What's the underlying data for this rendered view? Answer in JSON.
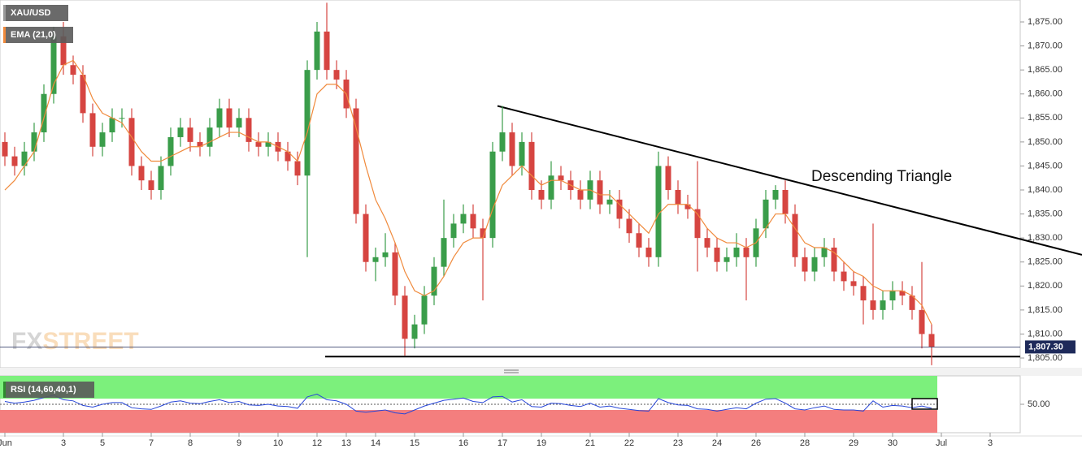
{
  "chart_data": {
    "type": "candlestick",
    "title": "XAU/USD",
    "categories": [
      "Jun",
      null,
      null,
      null,
      null,
      null,
      "3",
      null,
      null,
      null,
      "5",
      null,
      null,
      null,
      null,
      "7",
      null,
      null,
      null,
      "8",
      null,
      null,
      null,
      null,
      "9",
      null,
      null,
      null,
      "10",
      null,
      null,
      null,
      "12",
      null,
      null,
      "13",
      null,
      null,
      "14",
      null,
      null,
      null,
      "15",
      null,
      null,
      null,
      null,
      "16",
      null,
      null,
      null,
      "17",
      null,
      null,
      null,
      "19",
      null,
      null,
      null,
      null,
      "21",
      null,
      null,
      null,
      "22",
      null,
      null,
      null,
      null,
      "23",
      null,
      null,
      null,
      "24",
      null,
      null,
      null,
      "26",
      null,
      null,
      null,
      null,
      "28",
      null,
      null,
      null,
      null,
      "29",
      null,
      null,
      null,
      "30",
      null,
      null,
      null,
      null,
      "Jul",
      null,
      null,
      null,
      null,
      "3"
    ],
    "candles": [
      [
        1850,
        1852,
        1845,
        1847
      ],
      [
        1847,
        1849,
        1843,
        1845
      ],
      [
        1845,
        1850,
        1843,
        1848
      ],
      [
        1848,
        1854,
        1846,
        1852
      ],
      [
        1852,
        1862,
        1850,
        1860
      ],
      [
        1860,
        1874,
        1858,
        1872
      ],
      [
        1872,
        1875,
        1864,
        1866
      ],
      [
        1866,
        1868,
        1862,
        1864
      ],
      [
        1864,
        1866,
        1854,
        1856
      ],
      [
        1856,
        1858,
        1847,
        1849
      ],
      [
        1849,
        1854,
        1847,
        1852
      ],
      [
        1852,
        1857,
        1850,
        1855
      ],
      [
        1855,
        1857,
        1853,
        1855
      ],
      [
        1855,
        1857,
        1843,
        1845
      ],
      [
        1845,
        1847,
        1840,
        1842
      ],
      [
        1842,
        1844,
        1838,
        1840
      ],
      [
        1840,
        1847,
        1838,
        1845
      ],
      [
        1845,
        1853,
        1843,
        1851
      ],
      [
        1851,
        1855,
        1849,
        1853
      ],
      [
        1853,
        1855,
        1848,
        1850
      ],
      [
        1850,
        1852,
        1847,
        1849
      ],
      [
        1849,
        1855,
        1847,
        1853
      ],
      [
        1853,
        1859,
        1851,
        1857
      ],
      [
        1857,
        1859,
        1851,
        1853
      ],
      [
        1853,
        1857,
        1851,
        1855
      ],
      [
        1855,
        1857,
        1848,
        1850
      ],
      [
        1850,
        1852,
        1847,
        1849
      ],
      [
        1849,
        1852,
        1847,
        1850
      ],
      [
        1850,
        1852,
        1846,
        1848
      ],
      [
        1848,
        1850,
        1844,
        1846
      ],
      [
        1846,
        1848,
        1841,
        1843
      ],
      [
        1843,
        1867,
        1826,
        1865
      ],
      [
        1865,
        1875,
        1863,
        1873
      ],
      [
        1873,
        1879,
        1863,
        1865
      ],
      [
        1865,
        1867,
        1861,
        1863
      ],
      [
        1863,
        1865,
        1855,
        1857
      ],
      [
        1857,
        1859,
        1833,
        1835
      ],
      [
        1835,
        1837,
        1823,
        1825
      ],
      [
        1825,
        1828,
        1821,
        1826
      ],
      [
        1826,
        1831,
        1824,
        1827
      ],
      [
        1827,
        1829,
        1816,
        1818
      ],
      [
        1818,
        1820,
        1805.5,
        1809
      ],
      [
        1809,
        1814,
        1807,
        1812
      ],
      [
        1812,
        1820,
        1810,
        1818
      ],
      [
        1818,
        1826,
        1816,
        1824
      ],
      [
        1824,
        1838,
        1822,
        1830
      ],
      [
        1830,
        1835,
        1828,
        1833
      ],
      [
        1833,
        1837,
        1831,
        1835
      ],
      [
        1835,
        1837,
        1830,
        1832
      ],
      [
        1832,
        1834,
        1817,
        1830
      ],
      [
        1830,
        1850,
        1828,
        1848
      ],
      [
        1848,
        1857.5,
        1846,
        1852
      ],
      [
        1852,
        1854,
        1843,
        1845
      ],
      [
        1845,
        1852,
        1843,
        1850
      ],
      [
        1850,
        1852,
        1838,
        1840
      ],
      [
        1840,
        1842,
        1836,
        1838
      ],
      [
        1838,
        1846,
        1836,
        1843
      ],
      [
        1843,
        1845,
        1840,
        1842
      ],
      [
        1842,
        1844,
        1838,
        1840
      ],
      [
        1840,
        1842,
        1836,
        1838
      ],
      [
        1838,
        1844,
        1836,
        1842
      ],
      [
        1842,
        1844,
        1835,
        1837
      ],
      [
        1837,
        1840,
        1835,
        1838
      ],
      [
        1838,
        1840,
        1832,
        1834
      ],
      [
        1834,
        1836,
        1829,
        1831
      ],
      [
        1831,
        1833,
        1826,
        1828
      ],
      [
        1828,
        1830,
        1824,
        1826
      ],
      [
        1826,
        1848,
        1824,
        1845
      ],
      [
        1845,
        1847,
        1838,
        1840
      ],
      [
        1840,
        1842,
        1835,
        1837
      ],
      [
        1837,
        1839,
        1834,
        1836
      ],
      [
        1836,
        1846,
        1823,
        1830
      ],
      [
        1830,
        1832,
        1826,
        1828
      ],
      [
        1828,
        1830,
        1823,
        1825
      ],
      [
        1825,
        1828,
        1823,
        1826
      ],
      [
        1826,
        1831,
        1824,
        1828
      ],
      [
        1828,
        1830,
        1817,
        1826
      ],
      [
        1826,
        1834,
        1824,
        1832
      ],
      [
        1832,
        1840,
        1830,
        1838
      ],
      [
        1838,
        1841,
        1836,
        1840
      ],
      [
        1840,
        1842,
        1833,
        1835
      ],
      [
        1835,
        1837,
        1824,
        1826
      ],
      [
        1826,
        1828,
        1821,
        1823
      ],
      [
        1823,
        1828,
        1821,
        1826
      ],
      [
        1826,
        1830,
        1824,
        1828
      ],
      [
        1828,
        1830,
        1821,
        1823
      ],
      [
        1823,
        1825,
        1819,
        1821
      ],
      [
        1821,
        1823,
        1818,
        1820
      ],
      [
        1820,
        1822,
        1812,
        1817
      ],
      [
        1817,
        1833,
        1813,
        1815
      ],
      [
        1815,
        1819,
        1813,
        1817
      ],
      [
        1817,
        1821,
        1815,
        1819
      ],
      [
        1819,
        1821,
        1816,
        1818
      ],
      [
        1818,
        1820,
        1813,
        1815
      ],
      [
        1815,
        1825,
        1807,
        1810
      ],
      [
        1810,
        1812,
        1803.5,
        1807.3
      ],
      null,
      null,
      null,
      null,
      null,
      null
    ],
    "colors": {
      "up": "#3a9d4a",
      "down": "#d64541"
    },
    "ylim": [
      1802.97,
      1879.57
    ],
    "yticks": [
      {
        "value": 1805,
        "label": "1,805.00"
      },
      {
        "value": 1810,
        "label": "1,810.00"
      },
      {
        "value": 1815,
        "label": "1,815.00"
      },
      {
        "value": 1820,
        "label": "1,820.00"
      },
      {
        "value": 1825,
        "label": "1,825.00"
      },
      {
        "value": 1830,
        "label": "1,830.00"
      },
      {
        "value": 1835,
        "label": "1,835.00"
      },
      {
        "value": 1840,
        "label": "1,840.00"
      },
      {
        "value": 1845,
        "label": "1,845.00"
      },
      {
        "value": 1850,
        "label": "1,850.00"
      },
      {
        "value": 1855,
        "label": "1,855.00"
      },
      {
        "value": 1860,
        "label": "1,860.00"
      },
      {
        "value": 1865,
        "label": "1,865.00"
      },
      {
        "value": 1870,
        "label": "1,870.00"
      },
      {
        "value": 1875,
        "label": "1,875.00"
      }
    ],
    "series": [
      {
        "name": "EMA (21,0)",
        "color": "#f08a3c",
        "values": [
          1840,
          1842,
          1845,
          1848,
          1855,
          1862,
          1866,
          1867,
          1864,
          1859,
          1856,
          1855,
          1854,
          1851,
          1848,
          1846,
          1846,
          1847,
          1848,
          1849,
          1849,
          1850,
          1851,
          1852,
          1852,
          1851,
          1850,
          1850,
          1849,
          1848,
          1846,
          1852,
          1860,
          1862,
          1862,
          1860,
          1853,
          1845,
          1838,
          1834,
          1829,
          1823,
          1819,
          1818,
          1819,
          1822,
          1826,
          1829,
          1830,
          1830,
          1836,
          1841,
          1843,
          1845,
          1843,
          1841,
          1842,
          1842,
          1841,
          1840,
          1840,
          1839,
          1839,
          1837,
          1835,
          1833,
          1831,
          1835,
          1837,
          1837,
          1837,
          1835,
          1832,
          1830,
          1829,
          1829,
          1828,
          1829,
          1832,
          1835,
          1835,
          1832,
          1829,
          1828,
          1828,
          1827,
          1825,
          1823,
          1822,
          1820,
          1819,
          1819,
          1819,
          1818,
          1816,
          1812,
          null,
          null,
          null,
          null,
          null,
          null
        ]
      }
    ],
    "last_price": {
      "value": 1807.3,
      "label": "1,807.30"
    },
    "support_level": 1805.3,
    "trendline": {
      "label": "Descending Triangle",
      "start": 1857.5,
      "end": 1826.5
    },
    "watermark": [
      "FX",
      "STREET"
    ],
    "rsi": {
      "name": "RSI (14,60,40,1)",
      "color": "#2746d8",
      "ylim": [
        0,
        100
      ],
      "upper": 60,
      "lower": 40,
      "yticks": [
        {
          "value": 50,
          "label": "50.00"
        }
      ],
      "values": [
        55,
        52,
        54,
        57,
        62,
        66,
        58,
        56,
        48,
        45,
        50,
        53,
        53,
        44,
        42,
        41,
        47,
        54,
        56,
        52,
        51,
        55,
        58,
        53,
        55,
        49,
        48,
        50,
        47,
        46,
        43,
        63,
        68,
        58,
        56,
        50,
        38,
        36,
        38,
        40,
        35,
        33,
        40,
        47,
        52,
        57,
        59,
        61,
        55,
        53,
        63,
        64,
        54,
        58,
        46,
        45,
        52,
        51,
        48,
        46,
        52,
        45,
        47,
        43,
        41,
        39,
        38,
        60,
        53,
        49,
        48,
        42,
        41,
        38,
        41,
        44,
        42,
        52,
        59,
        60,
        52,
        42,
        40,
        44,
        47,
        41,
        40,
        40,
        38,
        56,
        45,
        48,
        47,
        44,
        47,
        43,
        null,
        null,
        null,
        null,
        null,
        null
      ]
    }
  }
}
